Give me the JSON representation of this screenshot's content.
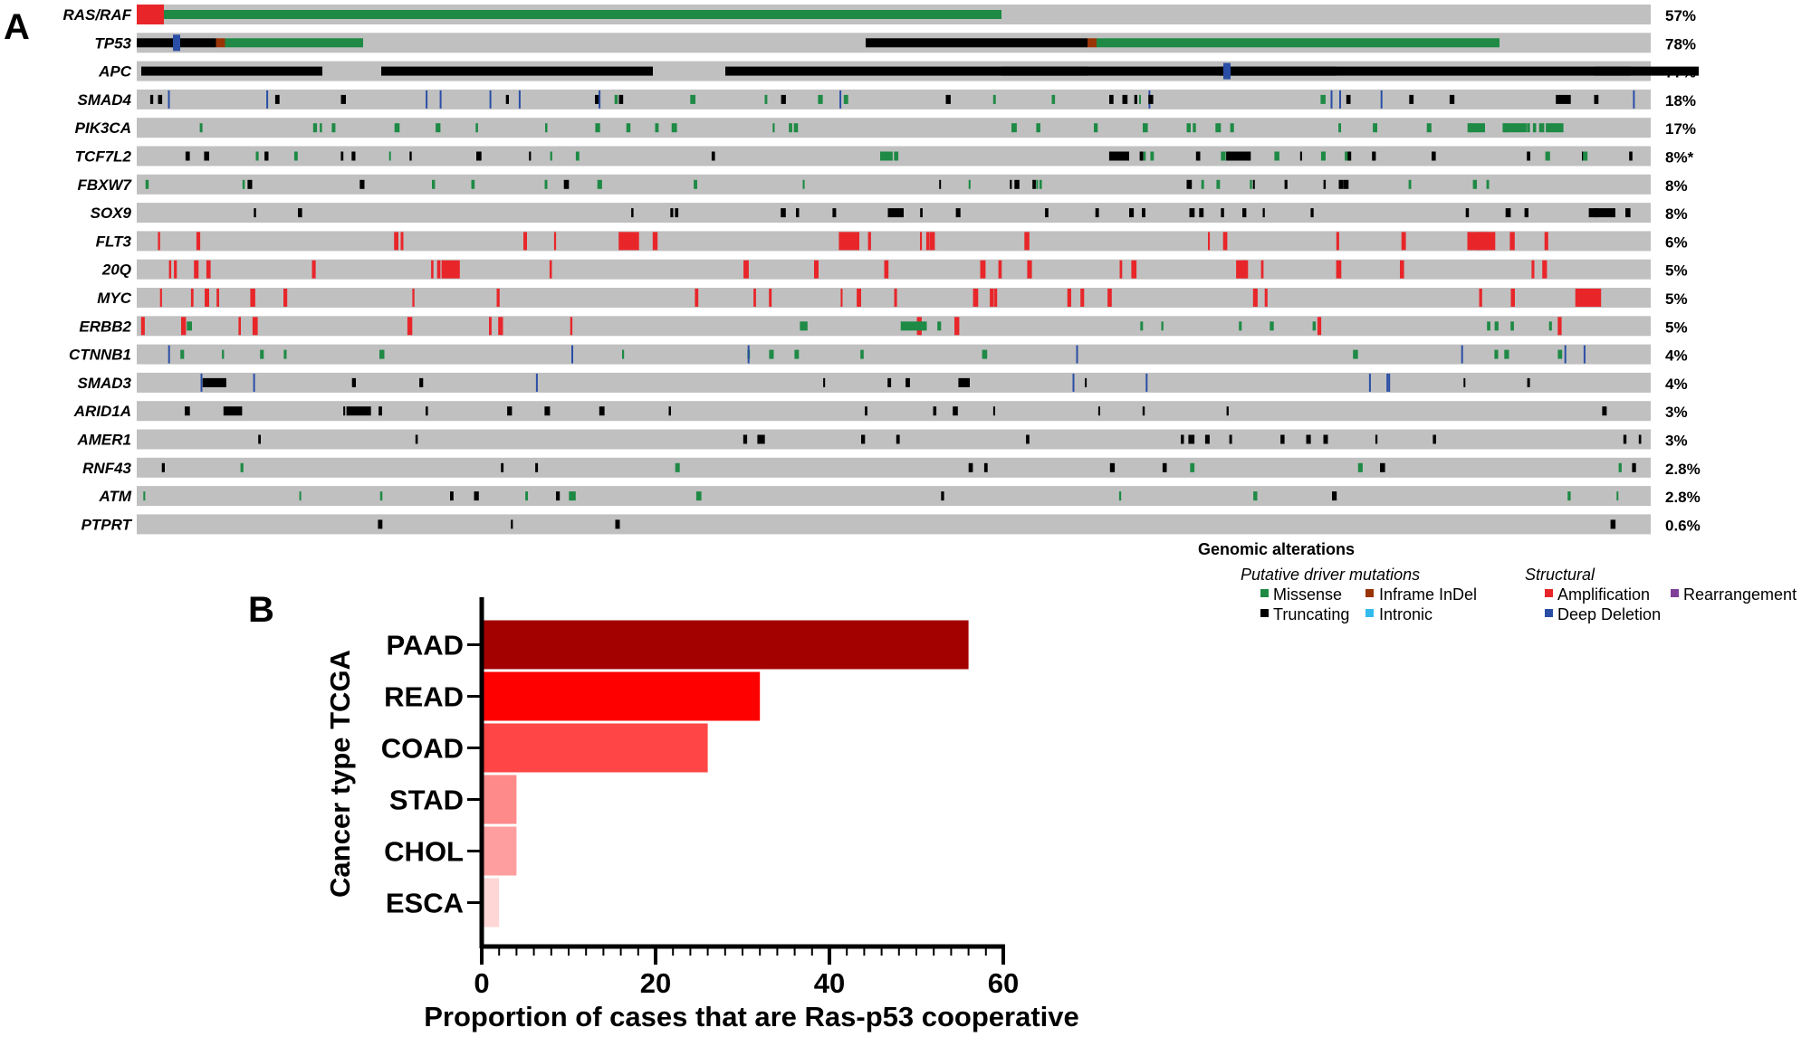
{
  "panel_a": {
    "letter": "A",
    "genes": [
      {
        "name": "RAS/RAF",
        "pct": "57%"
      },
      {
        "name": "TP53",
        "pct": "78%"
      },
      {
        "name": "APC",
        "pct": "77%"
      },
      {
        "name": "SMAD4",
        "pct": "18%"
      },
      {
        "name": "PIK3CA",
        "pct": "17%"
      },
      {
        "name": "TCF7L2",
        "pct": "8%*"
      },
      {
        "name": "FBXW7",
        "pct": "8%"
      },
      {
        "name": "SOX9",
        "pct": "8%"
      },
      {
        "name": "FLT3",
        "pct": "6%"
      },
      {
        "name": "20Q",
        "pct": "5%"
      },
      {
        "name": "MYC",
        "pct": "5%"
      },
      {
        "name": "ERBB2",
        "pct": "5%"
      },
      {
        "name": "CTNNB1",
        "pct": "4%"
      },
      {
        "name": "SMAD3",
        "pct": "4%"
      },
      {
        "name": "ARID1A",
        "pct": "3%"
      },
      {
        "name": "AMER1",
        "pct": "3%"
      },
      {
        "name": "RNF43",
        "pct": "2.8%"
      },
      {
        "name": "ATM",
        "pct": "2.8%"
      },
      {
        "name": "PTPRT",
        "pct": "0.6%"
      }
    ],
    "legend": {
      "title": "Genomic alterations",
      "driver_title": "Putative driver mutations",
      "structural_title": "Structural",
      "items": {
        "missense": "Missense",
        "inframe": "Inframe InDel",
        "truncating": "Truncating",
        "intronic": "Intronic",
        "amplification": "Amplification",
        "rearrangement": "Rearrangement",
        "deep_deletion": "Deep Deletion"
      }
    },
    "colors": {
      "background_track": "#c0c0c0",
      "missense": "#1e8a45",
      "inframe": "#993404",
      "truncating": "#000000",
      "intronic": "#33bbee",
      "amplification": "#e8262a",
      "rearrangement": "#7f3f98",
      "deep_deletion": "#2a4ea6"
    }
  },
  "chart_data": {
    "type": "bar",
    "orientation": "horizontal",
    "panel_letter": "B",
    "categories": [
      "PAAD",
      "READ",
      "COAD",
      "STAD",
      "CHOL",
      "ESCA"
    ],
    "values": [
      56,
      32,
      26,
      4,
      4,
      2
    ],
    "colors": [
      "#a30000",
      "#ff0000",
      "#ff4545",
      "#ff8a8a",
      "#ff9e9e",
      "#ffd6d6"
    ],
    "xlabel": "Proportion of cases that are Ras-p53 cooperative",
    "ylabel": "Cancer type TCGA",
    "xlim": [
      0,
      60
    ],
    "xticks": [
      0,
      20,
      40,
      60
    ],
    "grid": false
  }
}
